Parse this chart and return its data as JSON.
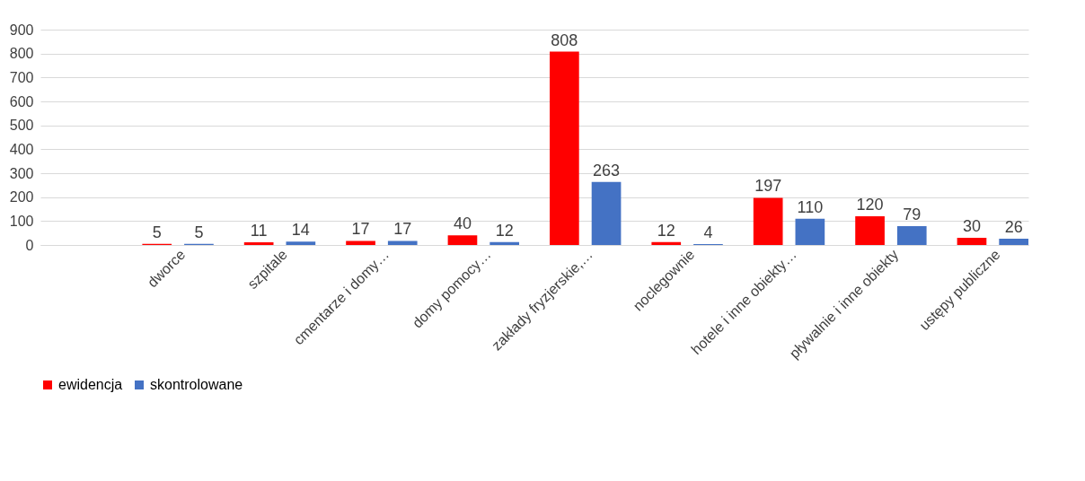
{
  "chart_data": {
    "type": "bar",
    "categories": [
      null,
      "dworce",
      "szpitale",
      "cmentarze i domy…",
      "domy pomocy…",
      "zakłady fryzjerskie,…",
      "noclegownie",
      "hotele i inne obiekty…",
      "pływalnie i inne obiekty",
      "ustępy publiczne"
    ],
    "series": [
      {
        "name": "ewidencja",
        "color": "#ff0000",
        "values": [
          null,
          5,
          11,
          17,
          40,
          808,
          12,
          197,
          120,
          30
        ]
      },
      {
        "name": "skontrolowane",
        "color": "#4472c4",
        "values": [
          null,
          5,
          14,
          17,
          12,
          263,
          4,
          110,
          79,
          26
        ]
      }
    ],
    "ylim": [
      0,
      900
    ],
    "yticks": [
      0,
      100,
      200,
      300,
      400,
      500,
      600,
      700,
      800,
      900
    ],
    "grid": "y",
    "legend": "bottom",
    "data_labels": true
  }
}
